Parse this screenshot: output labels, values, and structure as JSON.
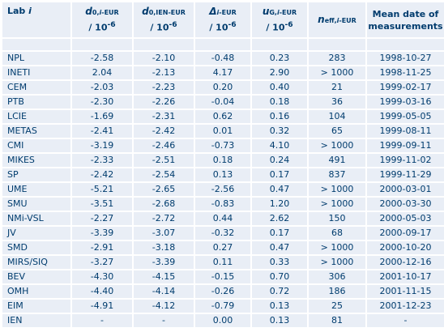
{
  "headers": {
    "lab": "Lab",
    "lab_i": "i",
    "d0": {
      "sym": "d",
      "sub": "0,",
      "sub_i": "i",
      "sub_tail": "-EUR",
      "unit": "/ 10",
      "exp": "-6"
    },
    "d0ien": {
      "sym": "d",
      "sub": "0,IEN-EUR",
      "unit": "/ 10",
      "exp": "-6"
    },
    "delta": {
      "sym": "Δ",
      "sub_i": "i",
      "sub_tail": "-EUR",
      "unit": "/ 10",
      "exp": "-6"
    },
    "u": {
      "sym": "u",
      "sub": "G,",
      "sub_i": "i",
      "sub_tail": "-EUR",
      "unit": "/ 10",
      "exp": "-6"
    },
    "neff": {
      "sym": "n",
      "sub": "eff,",
      "sub_i": "i",
      "sub_tail": "-EUR"
    },
    "date": {
      "line1": "Mean date of",
      "line2": "measurements"
    }
  },
  "rows": [
    {
      "lab": "NPL",
      "d0": "-2.58",
      "d0ien": "-2.10",
      "delta": "-0.48",
      "u": "0.23",
      "neff": "283",
      "date": "1998-10-27"
    },
    {
      "lab": "INETI",
      "d0": "2.04",
      "d0ien": "-2.13",
      "delta": "4.17",
      "u": "2.90",
      "neff": "> 1000",
      "date": "1998-11-25"
    },
    {
      "lab": "CEM",
      "d0": "-2.03",
      "d0ien": "-2.23",
      "delta": "0.20",
      "u": "0.40",
      "neff": "21",
      "date": "1999-02-17"
    },
    {
      "lab": "PTB",
      "d0": "-2.30",
      "d0ien": "-2.26",
      "delta": "-0.04",
      "u": "0.18",
      "neff": "36",
      "date": "1999-03-16"
    },
    {
      "lab": "LCIE",
      "d0": "-1.69",
      "d0ien": "-2.31",
      "delta": "0.62",
      "u": "0.16",
      "neff": "104",
      "date": "1999-05-05"
    },
    {
      "lab": "METAS",
      "d0": "-2.41",
      "d0ien": "-2.42",
      "delta": "0.01",
      "u": "0.32",
      "neff": "65",
      "date": "1999-08-11"
    },
    {
      "lab": "CMI",
      "d0": "-3.19",
      "d0ien": "-2.46",
      "delta": "-0.73",
      "u": "4.10",
      "neff": "> 1000",
      "date": "1999-09-11"
    },
    {
      "lab": "MIKES",
      "d0": "-2.33",
      "d0ien": "-2.51",
      "delta": "0.18",
      "u": "0.24",
      "neff": "491",
      "date": "1999-11-02"
    },
    {
      "lab": "SP",
      "d0": "-2.42",
      "d0ien": "-2.54",
      "delta": "0.13",
      "u": "0.17",
      "neff": "837",
      "date": "1999-11-29"
    },
    {
      "lab": "UME",
      "d0": "-5.21",
      "d0ien": "-2.65",
      "delta": "-2.56",
      "u": "0.47",
      "neff": "> 1000",
      "date": "2000-03-01"
    },
    {
      "lab": "SMU",
      "d0": "-3.51",
      "d0ien": "-2.68",
      "delta": "-0.83",
      "u": "1.20",
      "neff": "> 1000",
      "date": "2000-03-30"
    },
    {
      "lab": "NMi-VSL",
      "d0": "-2.27",
      "d0ien": "-2.72",
      "delta": "0.44",
      "u": "2.62",
      "neff": "150",
      "date": "2000-05-03"
    },
    {
      "lab": "JV",
      "d0": "-3.39",
      "d0ien": "-3.07",
      "delta": "-0.32",
      "u": "0.17",
      "neff": "68",
      "date": "2000-09-17"
    },
    {
      "lab": "SMD",
      "d0": "-2.91",
      "d0ien": "-3.18",
      "delta": "0.27",
      "u": "0.47",
      "neff": "> 1000",
      "date": "2000-10-20"
    },
    {
      "lab": "MIRS/SIQ",
      "d0": "-3.27",
      "d0ien": "-3.39",
      "delta": "0.11",
      "u": "0.33",
      "neff": "> 1000",
      "date": "2000-12-16"
    },
    {
      "lab": "BEV",
      "d0": "-4.30",
      "d0ien": "-4.15",
      "delta": "-0.15",
      "u": "0.70",
      "neff": "306",
      "date": "2001-10-17"
    },
    {
      "lab": "OMH",
      "d0": "-4.40",
      "d0ien": "-4.14",
      "delta": "-0.26",
      "u": "0.72",
      "neff": "186",
      "date": "2001-11-15"
    },
    {
      "lab": "EIM",
      "d0": "-4.91",
      "d0ien": "-4.12",
      "delta": "-0.79",
      "u": "0.13",
      "neff": "25",
      "date": "2001-12-23"
    },
    {
      "lab": "IEN",
      "d0": "-",
      "d0ien": "-",
      "delta": "0.00",
      "u": "0.13",
      "neff": "81",
      "date": "-"
    }
  ]
}
